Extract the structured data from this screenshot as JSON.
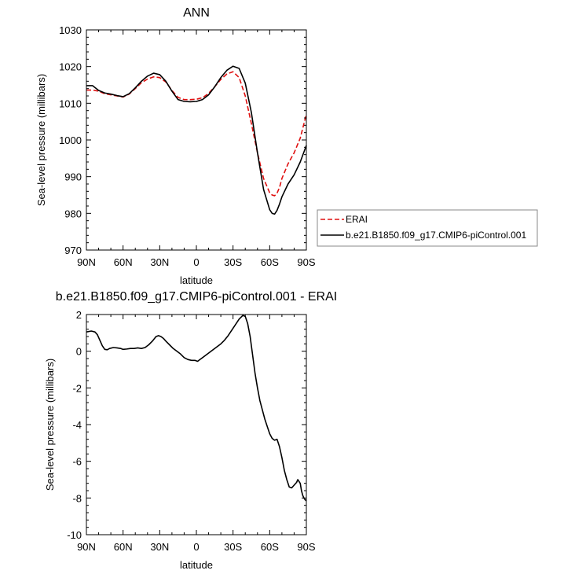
{
  "colors": {
    "erai": "#e01010",
    "model": "#000000",
    "frame": "#000000",
    "legend_border": "#888888"
  },
  "chart_data": [
    {
      "type": "line",
      "title": "ANN",
      "xlabel": "latitude",
      "ylabel": "Sea-level pressure (millibars)",
      "xlim": [
        90,
        -90
      ],
      "ylim": [
        970,
        1030
      ],
      "x_ticks": [
        90,
        60,
        30,
        0,
        -30,
        -60,
        -90
      ],
      "x_tick_labels": [
        "90N",
        "60N",
        "30N",
        "0",
        "30S",
        "60S",
        "90S"
      ],
      "y_ticks": [
        970,
        980,
        990,
        1000,
        1010,
        1020,
        1030
      ],
      "y_tick_labels": [
        "970",
        "980",
        "990",
        "1000",
        "1010",
        "1020",
        "1030"
      ],
      "legend": {
        "position": "right",
        "entries": [
          "ERAI",
          "b.e21.B1850.f09_g17.CMIP6-piControl.001"
        ]
      },
      "series": [
        {
          "name": "ERAI",
          "style": "dashed",
          "x": [
            90,
            85,
            80,
            75,
            70,
            65,
            60,
            55,
            50,
            45,
            40,
            35,
            30,
            25,
            20,
            15,
            10,
            5,
            0,
            -5,
            -10,
            -15,
            -20,
            -25,
            -30,
            -35,
            -40,
            -45,
            -50,
            -55,
            -60,
            -62,
            -64,
            -66,
            -68,
            -70,
            -75,
            -80,
            -85,
            -90
          ],
          "y": [
            1013.6,
            1013.6,
            1013.3,
            1012.6,
            1012.3,
            1012.0,
            1011.7,
            1012.5,
            1014.0,
            1015.6,
            1016.6,
            1017.2,
            1017.0,
            1015.8,
            1013.5,
            1011.6,
            1011.0,
            1011.0,
            1011.1,
            1011.5,
            1012.7,
            1014.5,
            1016.5,
            1018.0,
            1018.6,
            1017.0,
            1012.0,
            1004.5,
            996.5,
            989.5,
            985.6,
            985.0,
            984.8,
            985.5,
            987.0,
            989.5,
            993.5,
            996.5,
            1000.5,
            1007.0
          ]
        },
        {
          "name": "b.e21.B1850.f09_g17.CMIP6-piControl.001",
          "style": "solid",
          "x": [
            90,
            85,
            80,
            75,
            70,
            65,
            60,
            55,
            50,
            45,
            40,
            35,
            30,
            25,
            20,
            15,
            10,
            5,
            0,
            -5,
            -10,
            -15,
            -20,
            -25,
            -30,
            -35,
            -40,
            -45,
            -50,
            -55,
            -60,
            -62,
            -64,
            -66,
            -68,
            -70,
            -75,
            -80,
            -85,
            -90
          ],
          "y": [
            1014.8,
            1014.8,
            1013.5,
            1012.8,
            1012.5,
            1012.1,
            1011.8,
            1012.6,
            1014.2,
            1016.0,
            1017.4,
            1018.2,
            1017.8,
            1016.0,
            1013.3,
            1011.0,
            1010.5,
            1010.4,
            1010.5,
            1011.0,
            1012.3,
            1014.5,
            1017.0,
            1019.0,
            1020.1,
            1019.5,
            1015.5,
            1007.5,
            996.5,
            986.5,
            981.0,
            980.0,
            979.8,
            980.8,
            982.5,
            984.5,
            988.0,
            990.5,
            994.0,
            998.5
          ]
        }
      ]
    },
    {
      "type": "line",
      "title": "b.e21.B1850.f09_g17.CMIP6-piControl.001 - ERAI",
      "xlabel": "latitude",
      "ylabel": "Sea-level pressure (millibars)",
      "xlim": [
        90,
        -90
      ],
      "ylim": [
        -10,
        2
      ],
      "x_ticks": [
        90,
        60,
        30,
        0,
        -30,
        -60,
        -90
      ],
      "x_tick_labels": [
        "90N",
        "60N",
        "30N",
        "0",
        "30S",
        "60S",
        "90S"
      ],
      "y_ticks": [
        -10,
        -8,
        -6,
        -4,
        -2,
        0,
        2
      ],
      "y_tick_labels": [
        "-10",
        "-8",
        "-6",
        "-4",
        "-2",
        "0",
        "2"
      ],
      "series": [
        {
          "style": "solid",
          "x": [
            90,
            86,
            83,
            81,
            79,
            77,
            75,
            73,
            71,
            68,
            65,
            62,
            60,
            57,
            54,
            51,
            48,
            45,
            42,
            39,
            36,
            33,
            31,
            29,
            27,
            25,
            22,
            19,
            16,
            13,
            10,
            7,
            4,
            1,
            -1,
            -3,
            -5,
            -8,
            -11,
            -14,
            -17,
            -20,
            -23,
            -26,
            -29,
            -32,
            -35,
            -38,
            -40,
            -42,
            -44,
            -46,
            -48,
            -50,
            -52,
            -54,
            -56,
            -58,
            -60,
            -62,
            -64,
            -66,
            -68,
            -70,
            -72,
            -74,
            -76,
            -78,
            -80,
            -82,
            -83,
            -84,
            -85,
            -86,
            -87,
            -88,
            -89,
            -90
          ],
          "y": [
            1.05,
            1.1,
            1.05,
            0.9,
            0.6,
            0.3,
            0.1,
            0.08,
            0.15,
            0.2,
            0.18,
            0.15,
            0.1,
            0.12,
            0.15,
            0.15,
            0.18,
            0.15,
            0.2,
            0.35,
            0.55,
            0.8,
            0.85,
            0.8,
            0.7,
            0.55,
            0.35,
            0.15,
            0.0,
            -0.15,
            -0.35,
            -0.45,
            -0.5,
            -0.5,
            -0.55,
            -0.45,
            -0.35,
            -0.2,
            -0.05,
            0.1,
            0.25,
            0.4,
            0.6,
            0.85,
            1.15,
            1.45,
            1.75,
            1.95,
            1.9,
            1.5,
            0.8,
            -0.2,
            -1.2,
            -2.0,
            -2.7,
            -3.2,
            -3.7,
            -4.1,
            -4.5,
            -4.75,
            -4.85,
            -4.8,
            -5.2,
            -5.8,
            -6.5,
            -7.0,
            -7.4,
            -7.45,
            -7.3,
            -7.15,
            -7.0,
            -7.1,
            -7.2,
            -7.6,
            -7.85,
            -8.0,
            -8.1,
            -8.15
          ]
        }
      ]
    }
  ]
}
